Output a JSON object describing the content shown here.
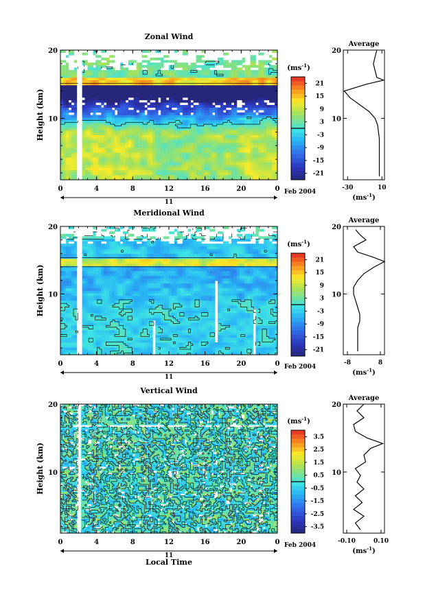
{
  "chart_data": [
    {
      "type": "heatmap",
      "title": "Zonal Wind",
      "ylabel": "Height (km)",
      "yticks": [
        "20",
        "10"
      ],
      "xticks": [
        "0",
        "4",
        "8",
        "12",
        "16",
        "20",
        "0"
      ],
      "day_label": "11",
      "date_label": "Feb 2004",
      "colorbar_unit": "(ms",
      "colorbar_unit_exp": "-1",
      "colorbar_unit_close": ")",
      "colorbar_ticks": [
        "21",
        "15",
        "9",
        "3",
        "-3",
        "-9",
        "-15",
        "-21"
      ],
      "zero_contour_level": 0,
      "height_range_km": [
        1,
        20
      ],
      "time_range_h": [
        0,
        24
      ],
      "profile": {
        "title": "Average",
        "yticks": [
          "20",
          "10"
        ],
        "xticks": [
          "-30",
          "10"
        ],
        "xlabel": "(ms",
        "xlabel_exp": "-1",
        "xlabel_close": ")",
        "xlim": [
          -35,
          13
        ],
        "heights": [
          1.5,
          3,
          5,
          7,
          9,
          10,
          11,
          12,
          13,
          14,
          15,
          15.6,
          16,
          17,
          18,
          19,
          20
        ],
        "values": [
          7,
          7,
          7,
          7,
          5,
          2,
          -5,
          -16,
          -27,
          -34,
          -8,
          12,
          4,
          2,
          0,
          2,
          4
        ]
      }
    },
    {
      "type": "heatmap",
      "title": "Meridional Wind",
      "ylabel": "Height (km)",
      "yticks": [
        "20",
        "10"
      ],
      "xticks": [
        "0",
        "4",
        "8",
        "12",
        "16",
        "20",
        "0"
      ],
      "day_label": "11",
      "date_label": "Feb 2004",
      "colorbar_unit": "(ms",
      "colorbar_unit_exp": "-1",
      "colorbar_unit_close": ")",
      "colorbar_ticks": [
        "21",
        "15",
        "9",
        "3",
        "-3",
        "-9",
        "-15",
        "-21"
      ],
      "zero_contour_level": 0,
      "height_range_km": [
        1,
        20
      ],
      "time_range_h": [
        0,
        24
      ],
      "profile": {
        "title": "Average",
        "yticks": [
          "20",
          "10"
        ],
        "xticks": [
          "-8",
          "8"
        ],
        "xlabel": "(ms",
        "xlabel_exp": "-1",
        "xlabel_close": ")",
        "xlim": [
          -10,
          10
        ],
        "heights": [
          1.5,
          3,
          5,
          6,
          7,
          8,
          9,
          10,
          11,
          12,
          13,
          14,
          14.8,
          15.5,
          16.2,
          17,
          18,
          18.8,
          19.5
        ],
        "values": [
          -3,
          -3,
          -3,
          -2,
          -2,
          -3,
          -4,
          -5,
          -5,
          -3,
          0,
          5,
          10,
          4,
          -3,
          -5,
          1,
          -2,
          -4
        ]
      }
    },
    {
      "type": "heatmap",
      "title": "Vertical Wind",
      "ylabel": "Height (km)",
      "xlabel": "Local Time",
      "yticks": [
        "20",
        "10"
      ],
      "xticks": [
        "0",
        "4",
        "8",
        "12",
        "16",
        "20",
        "0"
      ],
      "day_label": "11",
      "date_label": "Feb 2004",
      "colorbar_unit": "(ms",
      "colorbar_unit_exp": "-1",
      "colorbar_unit_close": ")",
      "colorbar_ticks": [
        "3.5",
        "2.5",
        "1.5",
        "0.5",
        "-0.5",
        "-1.5",
        "-2.5",
        "-3.5"
      ],
      "zero_contour_level": 0,
      "height_range_km": [
        1,
        20
      ],
      "time_range_h": [
        0,
        24
      ],
      "profile": {
        "title": "Average",
        "yticks": [
          "20",
          "10"
        ],
        "xticks": [
          "-0.10",
          "0.10"
        ],
        "xlabel": "(ms",
        "xlabel_exp": "-1",
        "xlabel_close": ")",
        "xlim": [
          -0.12,
          0.12
        ],
        "heights": [
          1.5,
          2.5,
          3.5,
          4.5,
          5.5,
          6.5,
          7.5,
          8.5,
          9.5,
          10.5,
          11.5,
          12.5,
          13.5,
          14.2,
          15,
          16,
          17,
          18,
          19,
          20
        ],
        "values": [
          -0.02,
          -0.05,
          0.0,
          -0.06,
          -0.01,
          -0.05,
          0.0,
          -0.04,
          -0.02,
          -0.05,
          0.01,
          0.0,
          0.04,
          0.11,
          0.02,
          -0.05,
          -0.06,
          0.0,
          -0.04,
          0.0
        ]
      }
    }
  ]
}
